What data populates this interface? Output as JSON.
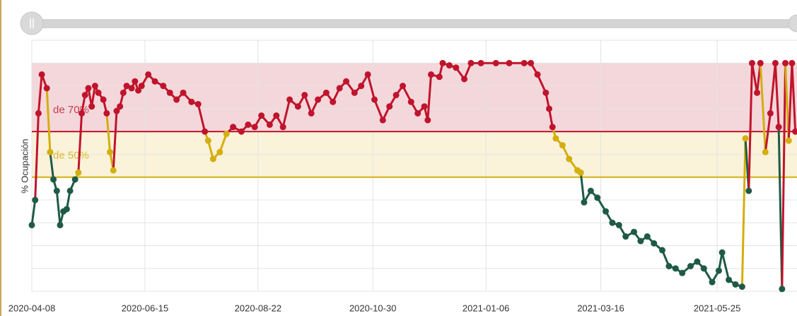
{
  "chart_data": {
    "type": "line",
    "y_label": "% Ocupación",
    "x": [
      "2020-04-08",
      "2020-04-10",
      "2020-04-12",
      "2020-04-14",
      "2020-04-17",
      "2020-04-19",
      "2020-04-21",
      "2020-04-23",
      "2020-04-25",
      "2020-04-27",
      "2020-04-29",
      "2020-05-01",
      "2020-05-04",
      "2020-05-06",
      "2020-05-08",
      "2020-05-10",
      "2020-05-12",
      "2020-05-14",
      "2020-05-16",
      "2020-05-18",
      "2020-05-21",
      "2020-05-23",
      "2020-05-25",
      "2020-05-27",
      "2020-05-29",
      "2020-05-31",
      "2020-06-02",
      "2020-06-04",
      "2020-06-07",
      "2020-06-09",
      "2020-06-11",
      "2020-06-13",
      "2020-06-17",
      "2020-06-21",
      "2020-06-26",
      "2020-06-30",
      "2020-07-04",
      "2020-07-08",
      "2020-07-13",
      "2020-07-17",
      "2020-07-21",
      "2020-07-23",
      "2020-07-26",
      "2020-07-30",
      "2020-08-03",
      "2020-08-07",
      "2020-08-12",
      "2020-08-16",
      "2020-08-20",
      "2020-08-24",
      "2020-08-29",
      "2020-09-02",
      "2020-09-06",
      "2020-09-10",
      "2020-09-15",
      "2020-09-19",
      "2020-09-23",
      "2020-09-27",
      "2020-10-02",
      "2020-10-06",
      "2020-10-10",
      "2020-10-14",
      "2020-10-19",
      "2020-10-23",
      "2020-10-27",
      "2020-10-31",
      "2020-11-05",
      "2020-11-09",
      "2020-11-13",
      "2020-11-17",
      "2020-11-22",
      "2020-11-26",
      "2020-11-30",
      "2020-12-02",
      "2020-12-04",
      "2020-12-09",
      "2020-12-11",
      "2020-12-15",
      "2020-12-19",
      "2020-12-24",
      "2020-12-28",
      "2021-01-03",
      "2021-01-12",
      "2021-01-20",
      "2021-01-29",
      "2021-02-02",
      "2021-02-06",
      "2021-02-11",
      "2021-02-13",
      "2021-02-15",
      "2021-02-17",
      "2021-02-21",
      "2021-02-25",
      "2021-03-02",
      "2021-03-04",
      "2021-03-06",
      "2021-03-10",
      "2021-03-14",
      "2021-03-19",
      "2021-03-23",
      "2021-03-27",
      "2021-03-31",
      "2021-04-05",
      "2021-04-09",
      "2021-04-13",
      "2021-04-17",
      "2021-04-22",
      "2021-04-26",
      "2021-04-30",
      "2021-05-04",
      "2021-05-09",
      "2021-05-13",
      "2021-05-17",
      "2021-05-22",
      "2021-05-26",
      "2021-05-28",
      "2021-06-01",
      "2021-06-05",
      "2021-06-09",
      "2021-06-11",
      "2021-06-13",
      "2021-06-15",
      "2021-06-18",
      "2021-06-20",
      "2021-06-23",
      "2021-06-26",
      "2021-06-29",
      "2021-07-01",
      "2021-07-03",
      "2021-07-05",
      "2021-07-07",
      "2021-07-09",
      "2021-07-11"
    ],
    "series": [
      {
        "color": "#1f5a47",
        "values": [
          29,
          40,
          78,
          95,
          89,
          61,
          49,
          44,
          29,
          35,
          36,
          44,
          49,
          52,
          78,
          86,
          89,
          81,
          90,
          87,
          84,
          78,
          61,
          53,
          79,
          81,
          87,
          90,
          89,
          92,
          88,
          90,
          95,
          92,
          90,
          87,
          84,
          87,
          83,
          82,
          70,
          66,
          58,
          61,
          69,
          72,
          70,
          73,
          72,
          77,
          73,
          77,
          72,
          84,
          81,
          86,
          78,
          84,
          87,
          83,
          89,
          92,
          87,
          90,
          95,
          84,
          75,
          81,
          86,
          90,
          83,
          78,
          81,
          75,
          95,
          94,
          100,
          99,
          98,
          93,
          100,
          100,
          100,
          100,
          100,
          100,
          95,
          87,
          80,
          72,
          67,
          64,
          58,
          53,
          52,
          39,
          44,
          41,
          35,
          30,
          29,
          24,
          26,
          22,
          24,
          21,
          18,
          11,
          10,
          8,
          11,
          13,
          10,
          4,
          9,
          17,
          5,
          3,
          2,
          67,
          44,
          100,
          87,
          100,
          61,
          78,
          100,
          72,
          1,
          100,
          66,
          100,
          70
        ]
      }
    ],
    "bands": [
      {
        "label": "de 70%",
        "from": 70,
        "to": 100,
        "fill": "#f4d7db",
        "color": "#c0142c"
      },
      {
        "label": "de 50%",
        "from": 50,
        "to": 70,
        "fill": "#fbf2da",
        "color": "#d4ae0c"
      }
    ],
    "xlim": [
      "2020-04-08",
      "2021-07-12"
    ],
    "xticks": [
      "2020-04-08",
      "2020-06-15",
      "2020-08-22",
      "2020-10-30",
      "2021-01-06",
      "2021-03-16",
      "2021-05-25"
    ],
    "ylim": [
      0,
      110
    ],
    "yticks": [
      0,
      10,
      20,
      30,
      40,
      50,
      60,
      70,
      80,
      90,
      100,
      110
    ],
    "grid": true
  }
}
